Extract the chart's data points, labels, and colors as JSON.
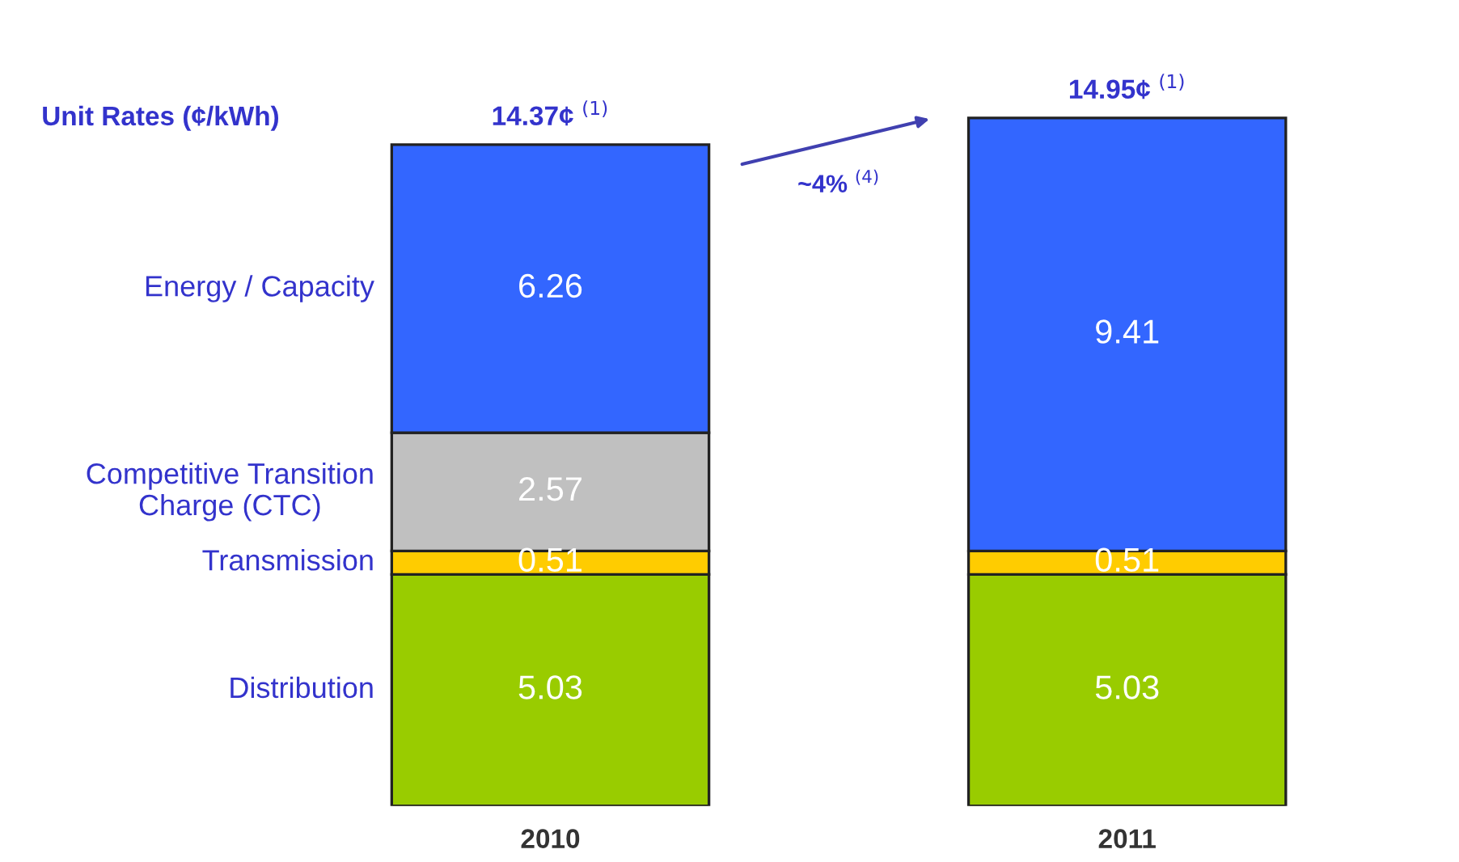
{
  "chart_data": {
    "type": "bar",
    "stacked": true,
    "title": "Unit Rates (¢/kWh)",
    "categories": [
      "2010",
      "2011"
    ],
    "series": [
      {
        "name": "Distribution",
        "color": "#99cc00",
        "values": [
          5.03,
          5.03
        ]
      },
      {
        "name": "Transmission",
        "color": "#ffcc00",
        "values": [
          0.51,
          0.51
        ]
      },
      {
        "name": "Competitive Transition\nCharge (CTC)",
        "color": "#c0c0c0",
        "values": [
          2.57,
          null
        ]
      },
      {
        "name": "Energy / Capacity",
        "color": "#3366ff",
        "values": [
          6.26,
          9.41
        ]
      }
    ],
    "data_labels": true,
    "totals": [
      "14.37¢ $^{(1)}$",
      "14.95¢ $^{(1)}$"
    ],
    "annotations": [
      "~4% $^{(4)}$"
    ],
    "legend": false
  }
}
